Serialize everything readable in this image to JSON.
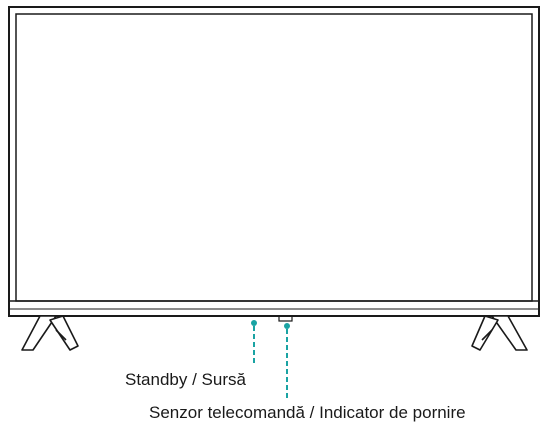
{
  "diagram": {
    "labels": {
      "standby_source": "Standby / Sursă",
      "remote_sensor_power_indicator": "Senzor telecomandă / Indicator de pornire"
    },
    "colors": {
      "outline": "#1a1a1a",
      "leader": "#1aa3a3",
      "background": "#ffffff"
    },
    "icons": [
      "tv-screen-icon",
      "tv-stand-left-icon",
      "tv-stand-right-icon"
    ]
  }
}
